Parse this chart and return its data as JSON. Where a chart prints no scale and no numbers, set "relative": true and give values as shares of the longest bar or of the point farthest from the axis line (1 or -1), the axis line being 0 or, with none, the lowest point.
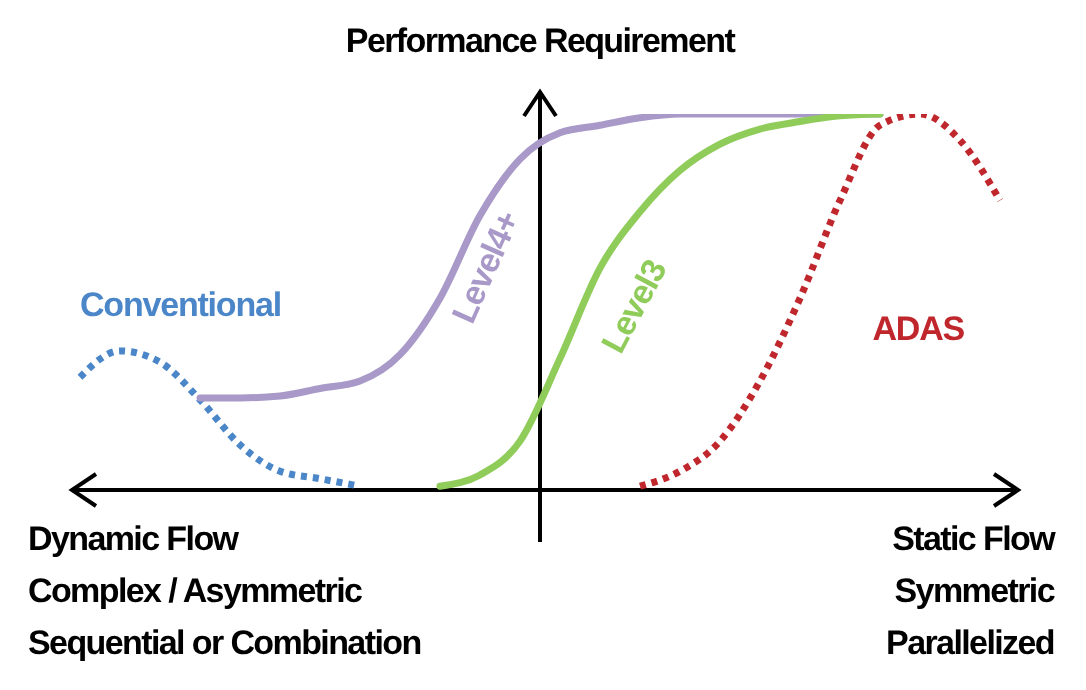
{
  "chart_data": {
    "type": "line",
    "ylabel": "Performance Requirement",
    "relative": true,
    "categories": [
      null,
      null,
      null,
      null,
      null,
      null,
      null,
      null,
      null,
      null,
      null,
      null,
      null,
      null,
      null,
      null,
      null,
      null,
      null,
      null,
      null,
      null,
      null,
      null
    ],
    "series": [
      {
        "name": "Conventional",
        "color": "#4a86c8",
        "line_style": "dotted",
        "values": [
          0.3,
          0.37,
          0.34,
          0.24,
          0.12,
          0.05,
          0.03,
          0.01,
          null,
          null,
          null,
          null,
          null,
          null,
          null,
          null,
          null,
          null,
          null,
          null,
          null,
          null,
          null,
          null
        ]
      },
      {
        "name": "Level4+",
        "color": "#a899c8",
        "line_style": "solid",
        "values": [
          null,
          null,
          null,
          0.245,
          0.245,
          0.25,
          0.27,
          0.29,
          0.36,
          0.51,
          0.73,
          0.88,
          0.95,
          0.97,
          0.99,
          1,
          1,
          1,
          1,
          1,
          1,
          null,
          null,
          null
        ]
      },
      {
        "name": "Level3",
        "color": "#8fcc5a",
        "line_style": "solid",
        "values": [
          null,
          null,
          null,
          null,
          null,
          null,
          null,
          null,
          null,
          0.01,
          0.04,
          0.13,
          0.35,
          0.59,
          0.74,
          0.85,
          0.92,
          0.96,
          0.98,
          0.995,
          1,
          null,
          null,
          null
        ]
      },
      {
        "name": "ADAS",
        "color": "#c0272d",
        "line_style": "dotted",
        "values": [
          null,
          null,
          null,
          null,
          null,
          null,
          null,
          null,
          null,
          null,
          null,
          null,
          null,
          null,
          0.01,
          0.05,
          0.13,
          0.29,
          0.51,
          0.77,
          0.97,
          1,
          0.93,
          0.77
        ]
      }
    ],
    "annotations": [
      "Dynamic Flow\nComplex / Asymmetric\nSequential or Combination",
      "Static Flow\nSymmetric\nParallelized"
    ]
  }
}
